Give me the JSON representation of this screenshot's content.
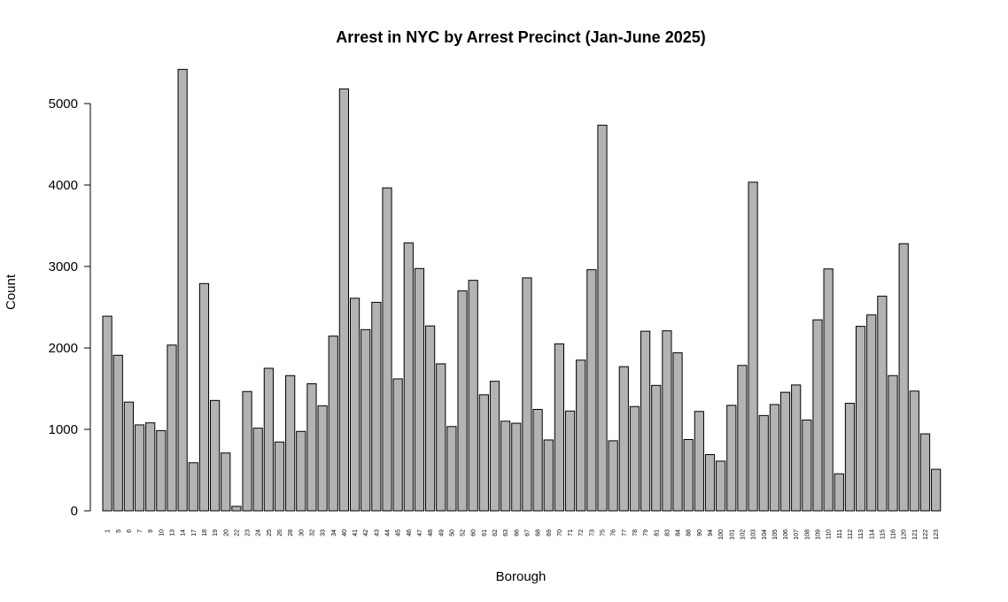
{
  "chart_data": {
    "type": "bar",
    "title": "Arrest in NYC by Arrest Precinct (Jan-June 2025)",
    "xlabel": "Borough",
    "ylabel": "Count",
    "ylim": [
      0,
      5600
    ],
    "yticks": [
      0,
      1000,
      2000,
      3000,
      4000,
      5000
    ],
    "grid": false,
    "bar_color": "#b3b3b3",
    "categories": [
      "1",
      "5",
      "6",
      "7",
      "9",
      "10",
      "13",
      "14",
      "17",
      "18",
      "19",
      "20",
      "22",
      "23",
      "24",
      "25",
      "26",
      "28",
      "30",
      "32",
      "33",
      "34",
      "40",
      "41",
      "42",
      "43",
      "44",
      "45",
      "46",
      "47",
      "48",
      "49",
      "50",
      "52",
      "60",
      "61",
      "62",
      "63",
      "66",
      "67",
      "68",
      "69",
      "70",
      "71",
      "72",
      "73",
      "75",
      "76",
      "77",
      "78",
      "79",
      "81",
      "83",
      "84",
      "88",
      "90",
      "94",
      "100",
      "101",
      "102",
      "103",
      "104",
      "105",
      "106",
      "107",
      "108",
      "109",
      "110",
      "111",
      "112",
      "113",
      "114",
      "115",
      "116",
      "120",
      "121",
      "122",
      "123"
    ],
    "values": [
      2390,
      1910,
      1335,
      1055,
      1080,
      985,
      2035,
      5420,
      590,
      2790,
      1355,
      710,
      55,
      1465,
      1015,
      1750,
      845,
      1660,
      975,
      1560,
      1290,
      2145,
      5180,
      2610,
      2225,
      2560,
      3965,
      1620,
      3290,
      2975,
      2270,
      1805,
      1035,
      2700,
      2830,
      1425,
      1590,
      1100,
      1075,
      2860,
      1245,
      870,
      2050,
      1225,
      1850,
      2960,
      4735,
      860,
      1770,
      1280,
      2205,
      1540,
      2210,
      1940,
      875,
      1220,
      690,
      610,
      1295,
      1785,
      4035,
      1170,
      1305,
      1455,
      1545,
      1115,
      2345,
      2970,
      455,
      1320,
      2265,
      2405,
      2635,
      1660,
      3280,
      1470,
      945,
      510
    ]
  }
}
